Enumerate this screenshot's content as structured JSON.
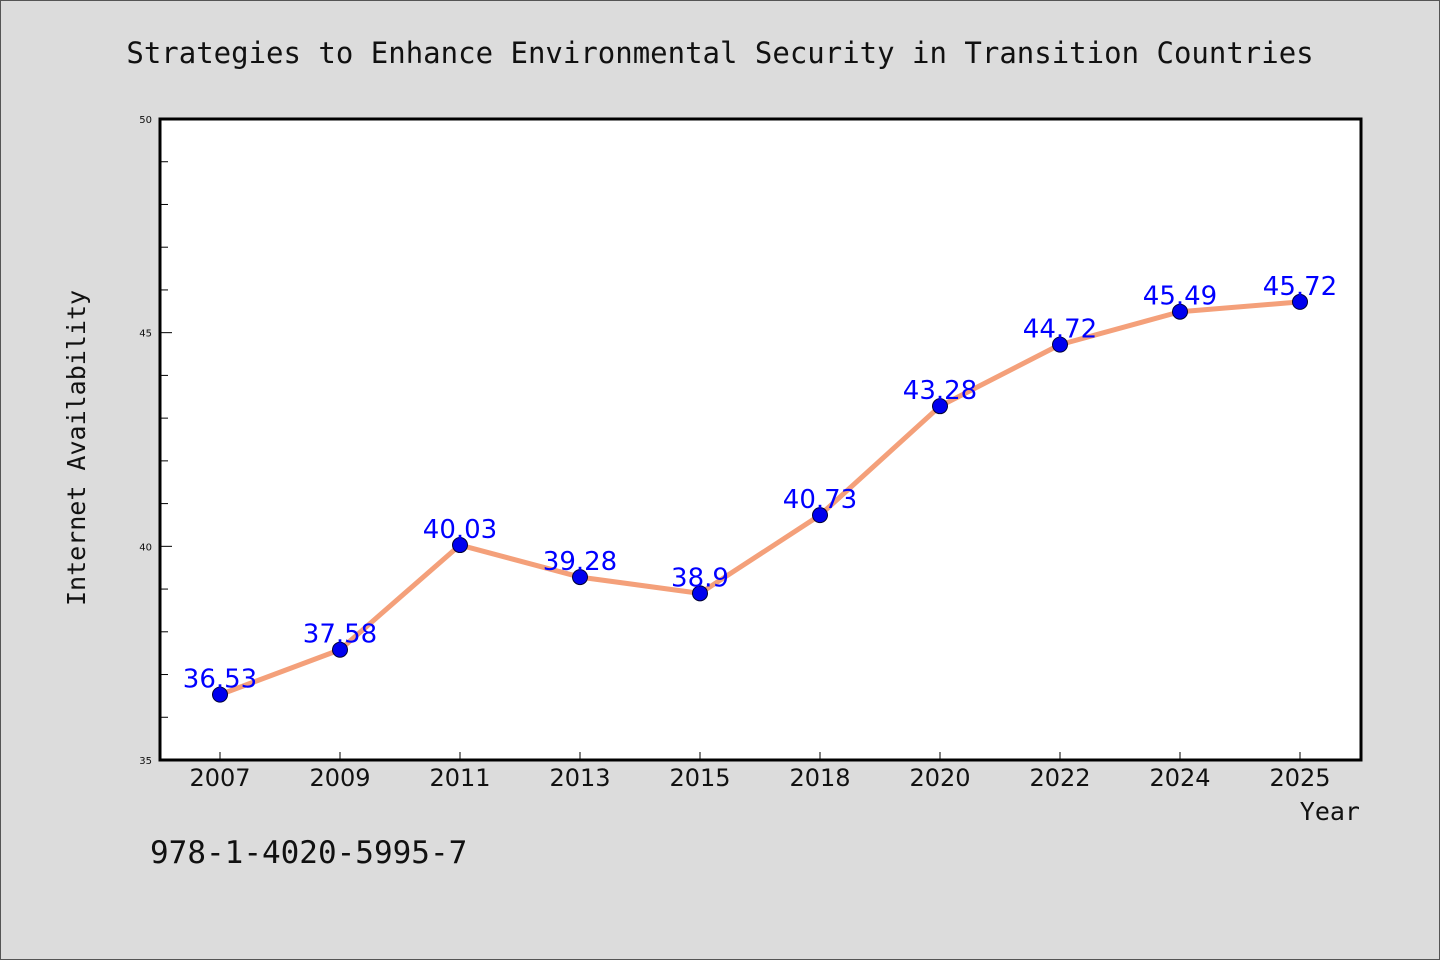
{
  "chart_data": {
    "type": "line",
    "title": "Strategies to Enhance Environmental Security in Transition Countries",
    "xlabel": "Year",
    "ylabel": "Internet Availability",
    "categories": [
      "2007",
      "2009",
      "2011",
      "2013",
      "2015",
      "2018",
      "2020",
      "2022",
      "2024",
      "2025"
    ],
    "series": [
      {
        "values": [
          36.53,
          37.58,
          40.03,
          39.28,
          38.9,
          40.73,
          43.28,
          44.72,
          45.49,
          45.72
        ],
        "data_labels": [
          "36.53",
          "37.58",
          "40.03",
          "39.28",
          "38.9",
          "40.73",
          "43.28",
          "44.72",
          "45.49",
          "45.72"
        ]
      }
    ],
    "ylim": [
      35,
      50
    ],
    "yticks": [
      "35",
      "40",
      "45",
      "50"
    ],
    "grid": false,
    "legend": "none",
    "colors": {
      "line": "#f4a07a",
      "marker": "#0000ee",
      "data_label": "#0000ff",
      "background": "#dcdcdc",
      "plot_background": "#ffffff"
    }
  },
  "footnote": "978-1-4020-5995-7"
}
